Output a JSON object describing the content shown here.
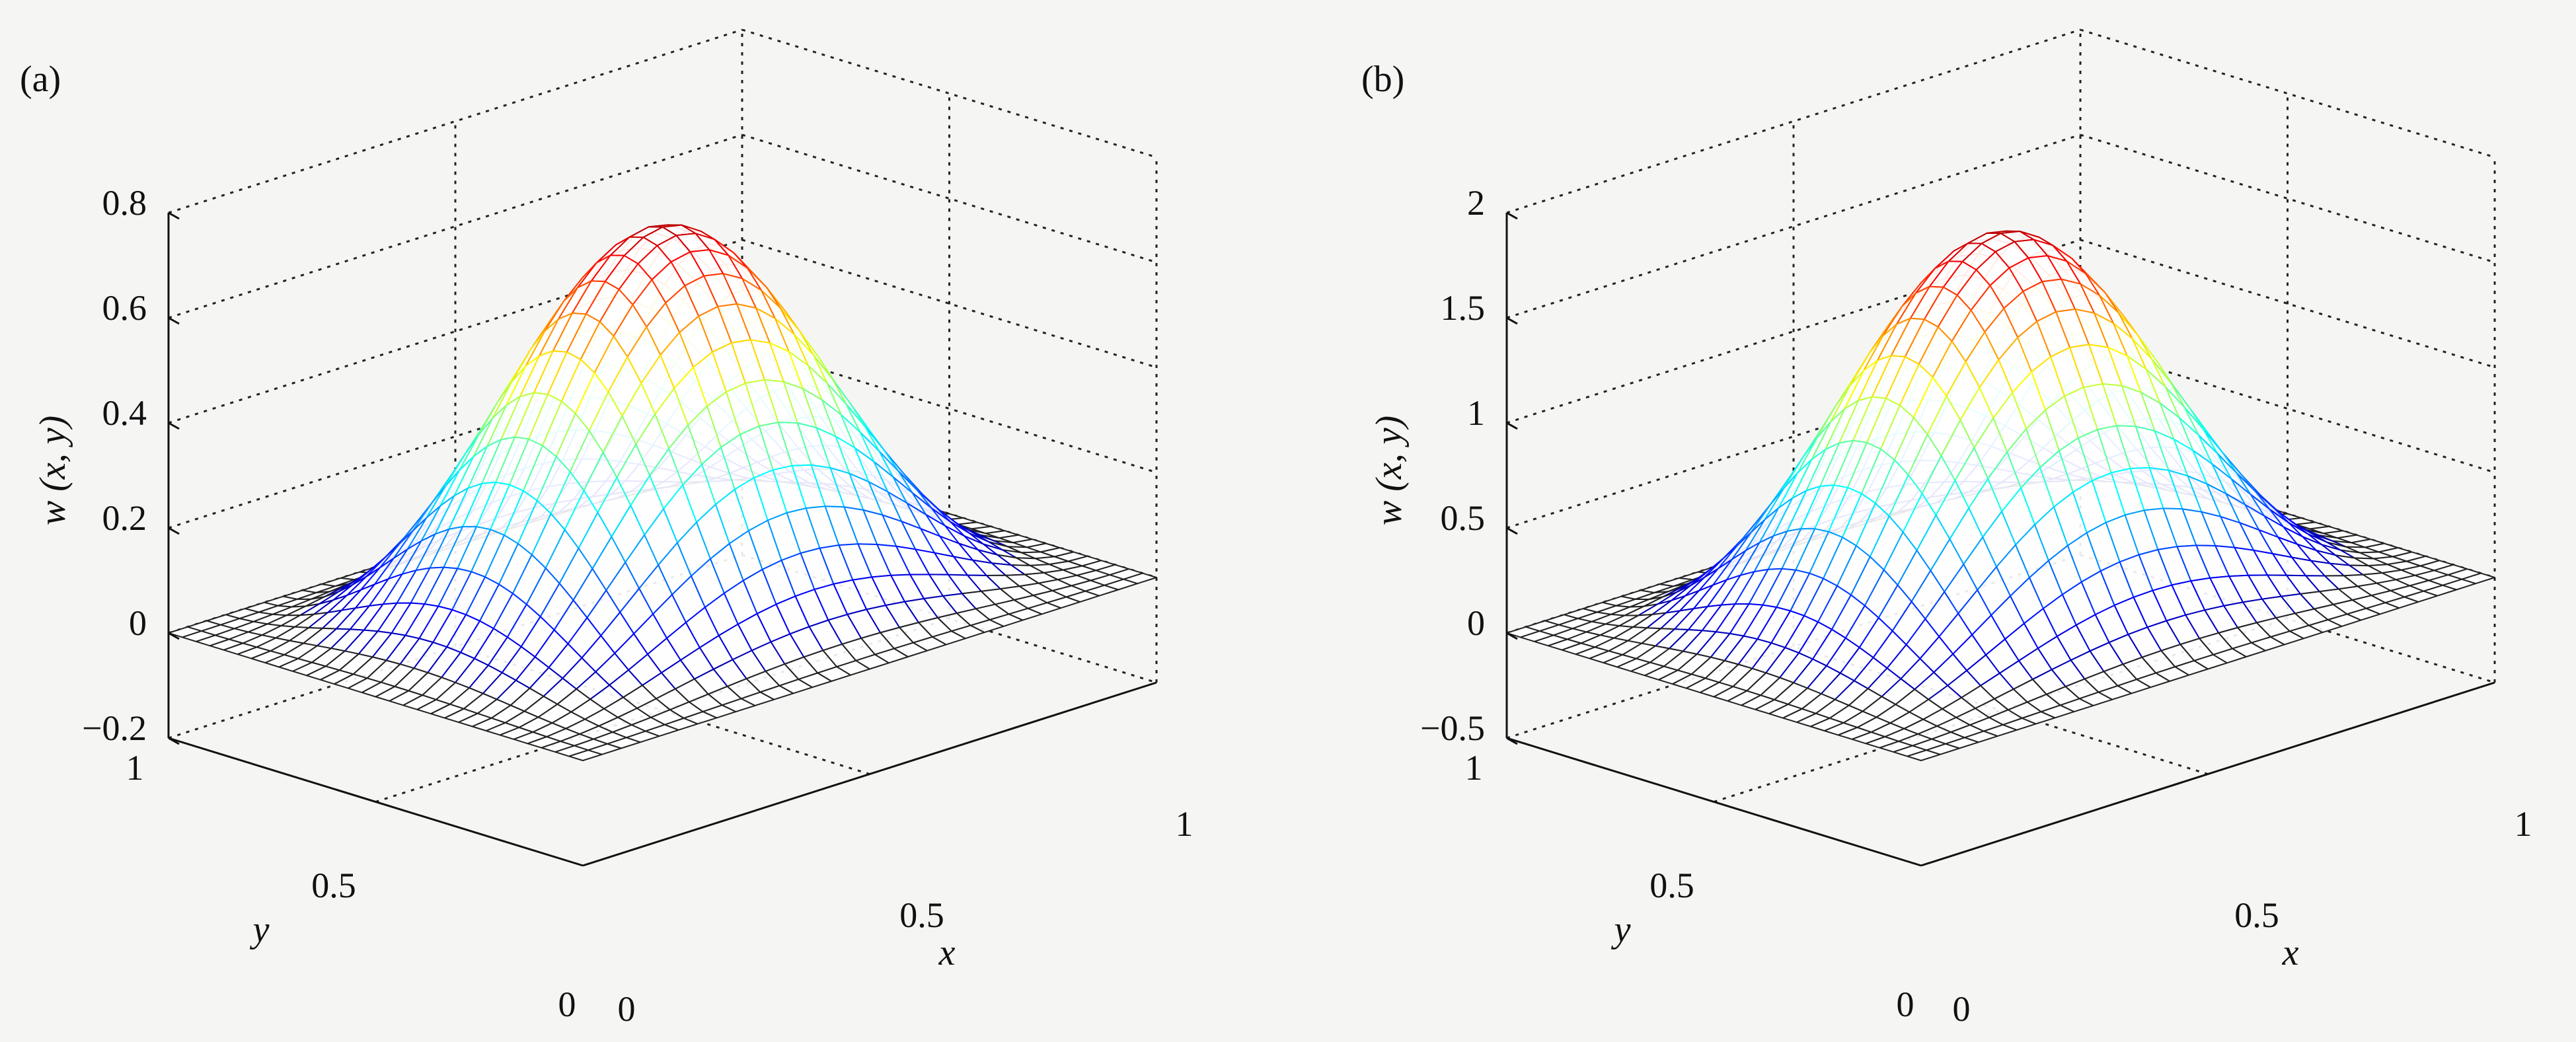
{
  "figure": {
    "background": "#f5f5f4",
    "line_color": "#111111",
    "panels": [
      {
        "label": "(a)",
        "zlabel": "w (x, y)",
        "zticks": [
          "0.8",
          "0.6",
          "0.4",
          "0.2",
          "0",
          "−0.2"
        ],
        "yticks": [
          "1",
          "0.5",
          "0"
        ],
        "xticks": [
          "0",
          "0.5",
          "1"
        ],
        "ylabel": "y",
        "xlabel": "x"
      },
      {
        "label": "(b)",
        "zlabel": "w (x, y)",
        "zticks": [
          "2",
          "1.5",
          "1",
          "0.5",
          "0",
          "−0.5"
        ],
        "yticks": [
          "1",
          "0.5",
          "0"
        ],
        "xticks": [
          "0",
          "0.5",
          "1"
        ],
        "ylabel": "y",
        "xlabel": "x"
      }
    ]
  },
  "chart_data": [
    {
      "type": "surface",
      "function": "w(x,y) = peak * sin(pi*x)^2 * sin(pi*y)^2",
      "x_range": [
        0,
        1
      ],
      "y_range": [
        0,
        1
      ],
      "zlim": [
        -0.2,
        0.8
      ],
      "peak": 0.72,
      "grid_lines": 31,
      "colormap": "jet",
      "xlabel": "x",
      "ylabel": "y",
      "zlabel": "w (x, y)",
      "grid": true
    },
    {
      "type": "surface",
      "function": "w(x,y) = peak * sin(pi*x)^2 * sin(pi*y)^2",
      "x_range": [
        0,
        1
      ],
      "y_range": [
        0,
        1
      ],
      "zlim": [
        -0.5,
        2
      ],
      "peak": 1.77,
      "grid_lines": 31,
      "colormap": "jet",
      "xlabel": "x",
      "ylabel": "y",
      "zlabel": "w (x, y)",
      "grid": true
    }
  ]
}
